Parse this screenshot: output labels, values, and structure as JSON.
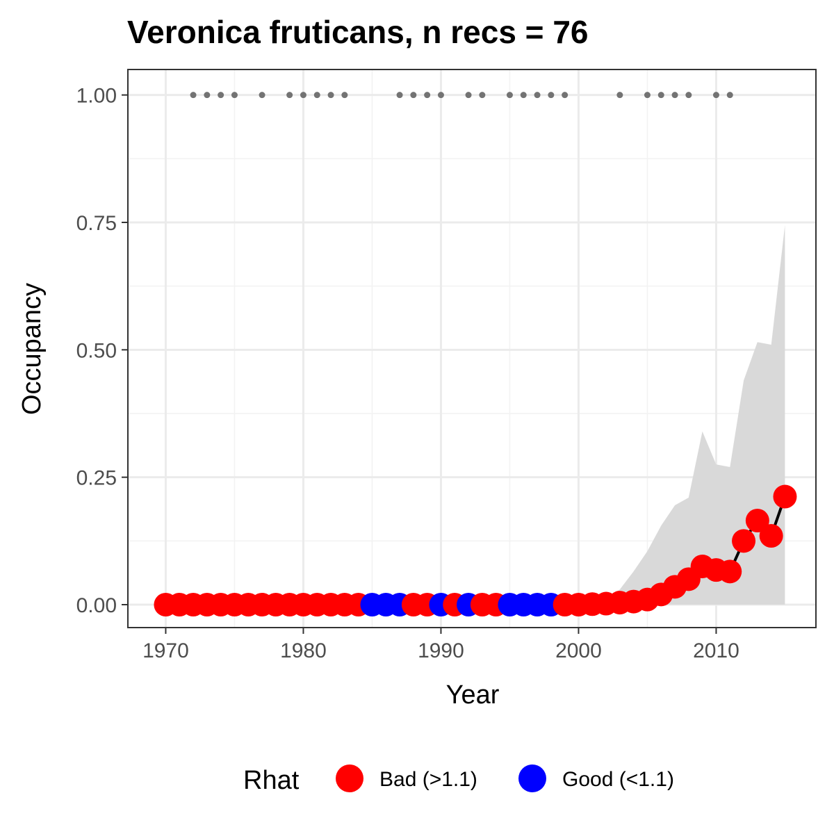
{
  "chart_data": {
    "type": "line",
    "title": "Veronica fruticans, n recs = 76",
    "xlabel": "Year",
    "ylabel": "Occupancy",
    "xlim": [
      1967.25,
      2017.25
    ],
    "ylim": [
      -0.045,
      1.05
    ],
    "x_ticks": [
      1970,
      1980,
      1990,
      2000,
      2010
    ],
    "x_tick_labels": [
      "1970",
      "1980",
      "1990",
      "2000",
      "2010"
    ],
    "y_ticks": [
      0,
      0.25,
      0.5,
      0.75,
      1
    ],
    "y_tick_labels": [
      "0.00",
      "0.25",
      "0.50",
      "0.75",
      "1.00"
    ],
    "grid": true,
    "legend": {
      "title": "Rhat",
      "position": "bottom",
      "entries": [
        {
          "label": "Bad (>1.1)",
          "color": "#ff0000"
        },
        {
          "label": "Good (<1.1)",
          "color": "#0000ff"
        }
      ]
    },
    "colors": {
      "Bad": "#ff0000",
      "Good": "#0000ff",
      "ribbon": "#d9d9d9",
      "line": "#000000",
      "record_points": "#737373"
    },
    "years": [
      1970,
      1971,
      1972,
      1973,
      1974,
      1975,
      1976,
      1977,
      1978,
      1979,
      1980,
      1981,
      1982,
      1983,
      1984,
      1985,
      1986,
      1987,
      1988,
      1989,
      1990,
      1991,
      1992,
      1993,
      1994,
      1995,
      1996,
      1997,
      1998,
      1999,
      2000,
      2001,
      2002,
      2003,
      2004,
      2005,
      2006,
      2007,
      2008,
      2009,
      2010,
      2011,
      2012,
      2013,
      2014,
      2015
    ],
    "occupancy": [
      0,
      0,
      0,
      0,
      0,
      0,
      0,
      0,
      0,
      0,
      0,
      0,
      0,
      0,
      0,
      0,
      0,
      0,
      0,
      0,
      0,
      0,
      0,
      0,
      0,
      0,
      0,
      0,
      0,
      0,
      0,
      0.001,
      0.002,
      0.004,
      0.006,
      0.01,
      0.02,
      0.035,
      0.05,
      0.075,
      0.068,
      0.065,
      0.125,
      0.165,
      0.135,
      0.212
    ],
    "upper_ci": [
      0,
      0,
      0,
      0,
      0,
      0,
      0,
      0,
      0,
      0,
      0,
      0,
      0,
      0,
      0,
      0,
      0,
      0,
      0,
      0,
      0,
      0,
      0,
      0,
      0,
      0,
      0,
      0,
      0,
      0,
      0.002,
      0.004,
      0.008,
      0.03,
      0.065,
      0.105,
      0.155,
      0.195,
      0.21,
      0.34,
      0.275,
      0.27,
      0.44,
      0.515,
      0.51,
      0.745
    ],
    "lower_ci": [
      0,
      0,
      0,
      0,
      0,
      0,
      0,
      0,
      0,
      0,
      0,
      0,
      0,
      0,
      0,
      0,
      0,
      0,
      0,
      0,
      0,
      0,
      0,
      0,
      0,
      0,
      0,
      0,
      0,
      0,
      0,
      0,
      0,
      0,
      0,
      0,
      0,
      0,
      0,
      0,
      0,
      0,
      0,
      0,
      0,
      0
    ],
    "rhat": [
      "Bad",
      "Bad",
      "Bad",
      "Bad",
      "Bad",
      "Bad",
      "Bad",
      "Bad",
      "Bad",
      "Bad",
      "Bad",
      "Bad",
      "Bad",
      "Bad",
      "Bad",
      "Good",
      "Good",
      "Good",
      "Bad",
      "Bad",
      "Good",
      "Bad",
      "Good",
      "Bad",
      "Bad",
      "Good",
      "Good",
      "Good",
      "Good",
      "Bad",
      "Bad",
      "Bad",
      "Bad",
      "Bad",
      "Bad",
      "Bad",
      "Bad",
      "Bad",
      "Bad",
      "Bad",
      "Bad",
      "Bad",
      "Bad",
      "Bad",
      "Bad",
      "Bad"
    ],
    "record_years": [
      1972,
      1973,
      1974,
      1975,
      1977,
      1979,
      1980,
      1981,
      1982,
      1983,
      1987,
      1988,
      1989,
      1990,
      1992,
      1993,
      1995,
      1996,
      1997,
      1998,
      1999,
      2003,
      2005,
      2006,
      2007,
      2008,
      2010,
      2011
    ],
    "record_y": 1.0
  }
}
